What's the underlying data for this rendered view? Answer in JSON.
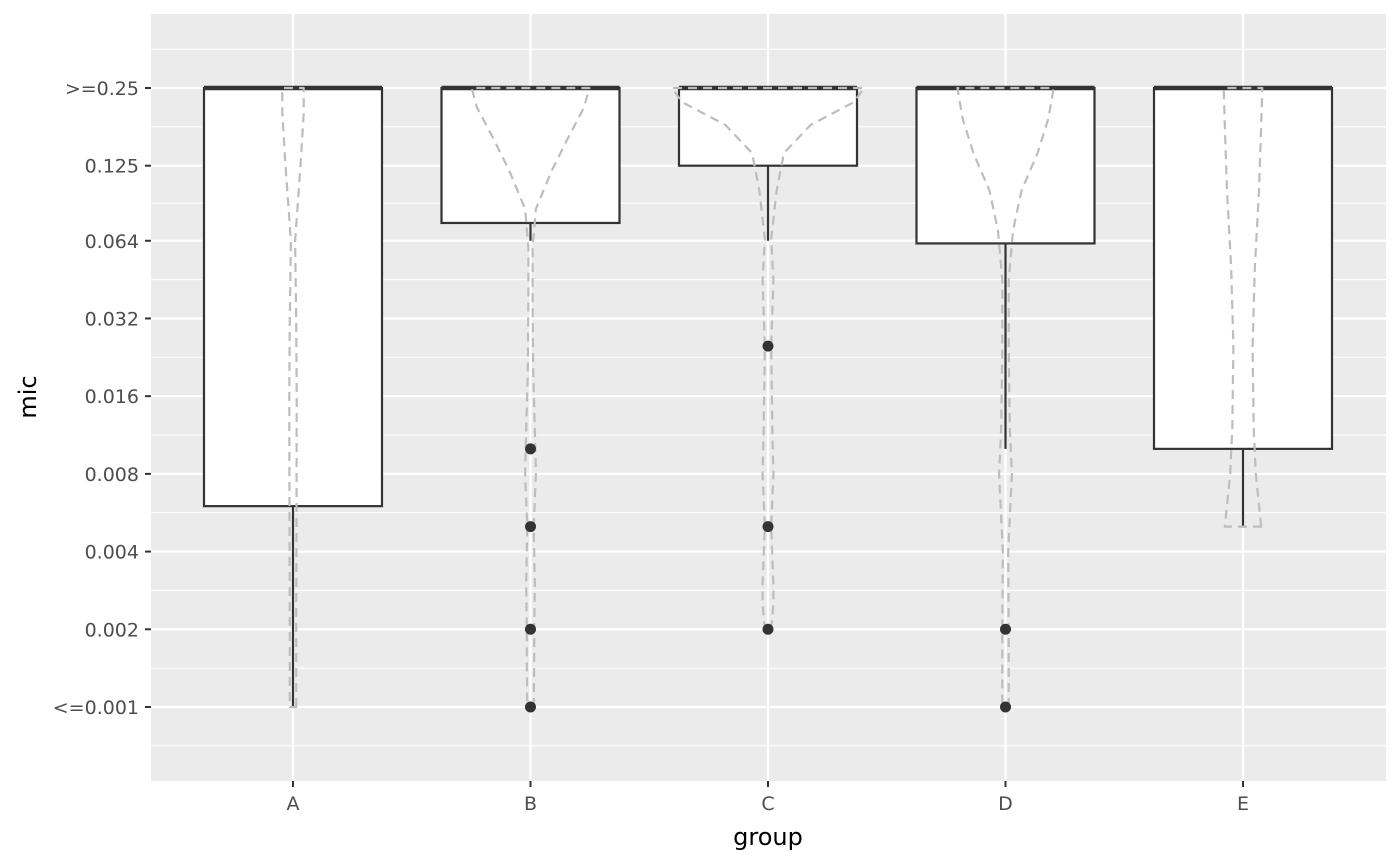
{
  "chart_data": {
    "type": "boxplot",
    "title": "",
    "xlabel": "group",
    "ylabel": "mic",
    "grid": true,
    "y_scale": "log2",
    "y_ticks": [
      {
        "label": "<=0.001",
        "value": 0.001
      },
      {
        "label": "0.002",
        "value": 0.002
      },
      {
        "label": "0.004",
        "value": 0.004
      },
      {
        "label": "0.008",
        "value": 0.008
      },
      {
        "label": "0.016",
        "value": 0.016
      },
      {
        "label": "0.032",
        "value": 0.032
      },
      {
        "label": "0.064",
        "value": 0.064
      },
      {
        "label": "0.125",
        "value": 0.125
      },
      {
        "label": ">=0.25",
        "value": 0.25
      }
    ],
    "categories": [
      "A",
      "B",
      "C",
      "D",
      "E"
    ],
    "boxes": [
      {
        "group": "A",
        "whisker_low": 0.001,
        "q1": 0.006,
        "median": 0.25,
        "q3": 0.25,
        "whisker_high": 0.25,
        "outliers": []
      },
      {
        "group": "B",
        "whisker_low": 0.064,
        "q1": 0.075,
        "median": 0.25,
        "q3": 0.25,
        "whisker_high": 0.25,
        "outliers": [
          0.01,
          0.005,
          0.002,
          0.001
        ]
      },
      {
        "group": "C",
        "whisker_low": 0.064,
        "q1": 0.125,
        "median": 0.25,
        "q3": 0.25,
        "whisker_high": 0.25,
        "outliers": [
          0.025,
          0.005,
          0.002
        ]
      },
      {
        "group": "D",
        "whisker_low": 0.01,
        "q1": 0.0625,
        "median": 0.25,
        "q3": 0.25,
        "whisker_high": 0.25,
        "outliers": [
          0.002,
          0.001
        ]
      },
      {
        "group": "E",
        "whisker_low": 0.005,
        "q1": 0.01,
        "median": 0.25,
        "q3": 0.25,
        "whisker_high": 0.25,
        "outliers": []
      }
    ],
    "violins": [
      {
        "group": "A",
        "profile": [
          [
            0.001,
            0.03
          ],
          [
            0.002,
            0.03
          ],
          [
            0.004,
            0.032
          ],
          [
            0.008,
            0.034
          ],
          [
            0.016,
            0.035
          ],
          [
            0.032,
            0.03
          ],
          [
            0.064,
            0.02
          ],
          [
            0.125,
            0.07
          ],
          [
            0.2,
            0.1
          ],
          [
            0.25,
            0.1
          ]
        ]
      },
      {
        "group": "B",
        "profile": [
          [
            0.001,
            0.03
          ],
          [
            0.0015,
            0.035
          ],
          [
            0.002,
            0.035
          ],
          [
            0.003,
            0.04
          ],
          [
            0.005,
            0.03
          ],
          [
            0.008,
            0.05
          ],
          [
            0.012,
            0.04
          ],
          [
            0.02,
            0.025
          ],
          [
            0.04,
            0.02
          ],
          [
            0.06,
            0.02
          ],
          [
            0.085,
            0.05
          ],
          [
            0.12,
            0.2
          ],
          [
            0.16,
            0.35
          ],
          [
            0.21,
            0.5
          ],
          [
            0.25,
            0.55
          ]
        ]
      },
      {
        "group": "C",
        "profile": [
          [
            0.002,
            0.03
          ],
          [
            0.0025,
            0.05
          ],
          [
            0.003,
            0.05
          ],
          [
            0.005,
            0.03
          ],
          [
            0.008,
            0.05
          ],
          [
            0.012,
            0.04
          ],
          [
            0.025,
            0.03
          ],
          [
            0.045,
            0.05
          ],
          [
            0.065,
            0.03
          ],
          [
            0.1,
            0.08
          ],
          [
            0.14,
            0.15
          ],
          [
            0.18,
            0.4
          ],
          [
            0.22,
            0.8
          ],
          [
            0.25,
            0.9
          ]
        ]
      },
      {
        "group": "D",
        "profile": [
          [
            0.001,
            0.03
          ],
          [
            0.002,
            0.03
          ],
          [
            0.004,
            0.025
          ],
          [
            0.008,
            0.06
          ],
          [
            0.012,
            0.04
          ],
          [
            0.025,
            0.03
          ],
          [
            0.045,
            0.03
          ],
          [
            0.07,
            0.07
          ],
          [
            0.1,
            0.15
          ],
          [
            0.14,
            0.3
          ],
          [
            0.19,
            0.4
          ],
          [
            0.25,
            0.45
          ]
        ]
      },
      {
        "group": "E",
        "profile": [
          [
            0.005,
            0.17
          ],
          [
            0.008,
            0.12
          ],
          [
            0.012,
            0.1
          ],
          [
            0.025,
            0.09
          ],
          [
            0.05,
            0.11
          ],
          [
            0.1,
            0.15
          ],
          [
            0.18,
            0.17
          ],
          [
            0.25,
            0.18
          ]
        ]
      }
    ],
    "colors": {
      "panel": "#ebebeb",
      "grid": "#ffffff",
      "box_fill": "#ffffff",
      "box_line": "#333333",
      "violin_line": "#bdbdbd",
      "point": "#333333"
    }
  }
}
